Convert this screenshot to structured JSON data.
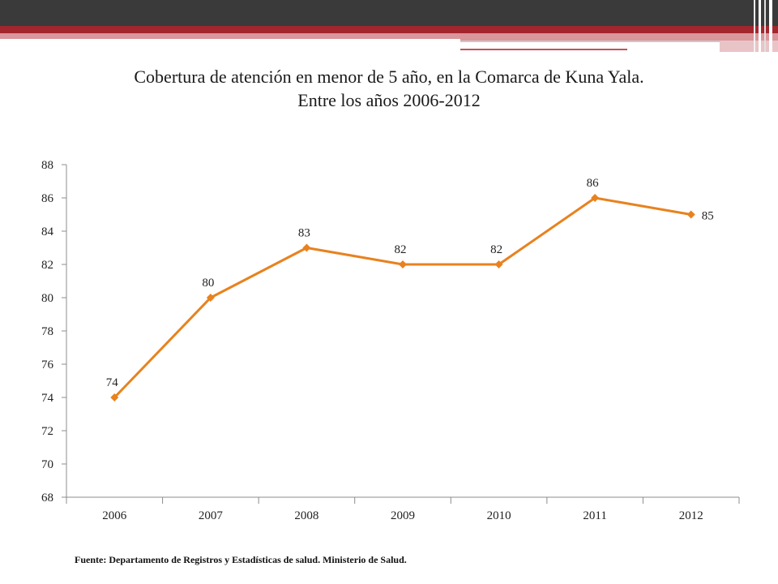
{
  "slide": {
    "colors": {
      "banner_dark": "#3a3a3a",
      "banner_red": "#a3262f",
      "banner_pink": "#d9969b",
      "line": "#e8821e",
      "axis": "#8c8c8c"
    }
  },
  "chart_data": {
    "type": "line",
    "title": "Cobertura de atención en menor de 5 año, en la Comarca de Kuna Yala.",
    "subtitle": "Entre los años 2006-2012",
    "categories": [
      "2006",
      "2007",
      "2008",
      "2009",
      "2010",
      "2011",
      "2012"
    ],
    "series": [
      {
        "values": [
          74,
          80,
          83,
          82,
          82,
          86,
          85
        ],
        "color": "#e8821e",
        "marker": "diamond",
        "data_labels": true
      }
    ],
    "ylim": [
      68,
      88
    ],
    "yticks": [
      68,
      70,
      72,
      74,
      76,
      78,
      80,
      82,
      84,
      86,
      88
    ],
    "xlabel": "",
    "ylabel": "",
    "grid": false,
    "legend": "none"
  },
  "footer": {
    "source": "Fuente: Departamento de Registros y Estadísticas de salud. Ministerio de Salud."
  }
}
